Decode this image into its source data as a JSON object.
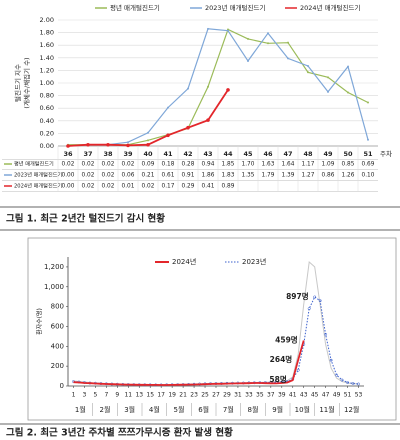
{
  "chart_data": [
    {
      "type": "line",
      "y_label": [
        "털진드기 지수",
        "(개체수/채집기 수)"
      ],
      "x_label": "주차",
      "categories": [
        "36",
        "37",
        "38",
        "39",
        "40",
        "41",
        "42",
        "43",
        "44",
        "45",
        "46",
        "47",
        "48",
        "49",
        "50",
        "51"
      ],
      "ylim": [
        0,
        2
      ],
      "yticks": [
        {
          "value": 0,
          "label": "0.00"
        },
        {
          "value": 0.2,
          "label": "0.20"
        },
        {
          "value": 0.4,
          "label": "0.40"
        },
        {
          "value": 0.6,
          "label": "0.60"
        },
        {
          "value": 0.8,
          "label": "0.80"
        },
        {
          "value": 1,
          "label": "1.00"
        },
        {
          "value": 1.2,
          "label": "1.20"
        },
        {
          "value": 1.4,
          "label": "1.40"
        },
        {
          "value": 1.6,
          "label": "1.60"
        },
        {
          "value": 1.8,
          "label": "1.80"
        },
        {
          "value": 2,
          "label": "2.00"
        }
      ],
      "grid": true,
      "legend": "top",
      "series": [
        {
          "name": "평년 매개털진드기",
          "color": "#9bbb59",
          "values": [
            0.02,
            0.02,
            0.02,
            0.02,
            0.09,
            0.18,
            0.28,
            0.94,
            1.85,
            1.7,
            1.63,
            1.64,
            1.17,
            1.09,
            0.85,
            0.69
          ],
          "value_labels": [
            "0.02",
            "0.02",
            "0.02",
            "0.02",
            "0.09",
            "0.18",
            "0.28",
            "0.94",
            "1.85",
            "1.70",
            "1.63",
            "1.64",
            "1.17",
            "1.09",
            "0.85",
            "0.69"
          ]
        },
        {
          "name": "2023년 매개털진드기",
          "color": "#7fa7d8",
          "values": [
            0,
            0.02,
            0.02,
            0.06,
            0.21,
            0.61,
            0.91,
            1.86,
            1.83,
            1.35,
            1.79,
            1.39,
            1.27,
            0.86,
            1.26,
            0.1
          ],
          "value_labels": [
            "0.00",
            "0.02",
            "0.02",
            "0.06",
            "0.21",
            "0.61",
            "0.91",
            "1.86",
            "1.83",
            "1.35",
            "1.79",
            "1.39",
            "1.27",
            "0.86",
            "1.26",
            "0.10"
          ]
        },
        {
          "name": "2024년 매개털진드기",
          "color": "#e3262b",
          "values": [
            0,
            0.02,
            0.02,
            0.01,
            0.02,
            0.17,
            0.29,
            0.41,
            0.89,
            null,
            null,
            null,
            null,
            null,
            null,
            null
          ],
          "value_labels": [
            "0.00",
            "0.02",
            "0.02",
            "0.01",
            "0.02",
            "0.17",
            "0.29",
            "0.41",
            "0.89",
            null,
            null,
            null,
            null,
            null,
            null,
            null
          ]
        }
      ],
      "caption": "그림 1. 최근 2년간 털진드기 감시 현황"
    },
    {
      "type": "line",
      "y_label": "환자수(명)",
      "x": [
        1,
        2,
        3,
        4,
        5,
        6,
        7,
        8,
        9,
        10,
        11,
        12,
        13,
        14,
        15,
        16,
        17,
        18,
        19,
        20,
        21,
        22,
        23,
        24,
        25,
        26,
        27,
        28,
        29,
        30,
        31,
        32,
        33,
        34,
        35,
        36,
        37,
        38,
        39,
        40,
        41,
        42,
        43,
        44,
        45,
        46,
        47,
        48,
        49,
        50,
        51,
        52,
        53
      ],
      "xlim": [
        0,
        54
      ],
      "xticks": [
        1,
        3,
        5,
        7,
        9,
        11,
        13,
        15,
        17,
        19,
        21,
        23,
        25,
        27,
        29,
        31,
        33,
        35,
        37,
        39,
        41,
        43,
        45,
        47,
        49,
        51,
        53
      ],
      "months": [
        "1월",
        "2월",
        "3월",
        "4월",
        "5월",
        "6월",
        "7월",
        "8월",
        "9월",
        "10월",
        "11월",
        "12월"
      ],
      "ylim": [
        0,
        1300
      ],
      "yticks": [
        0,
        200,
        400,
        600,
        800,
        {
          "value": 1000,
          "label": "1,000"
        },
        {
          "value": 1200,
          "label": "1,200"
        }
      ],
      "series": [
        {
          "color": "#c8c8c8",
          "values": [
            50,
            45,
            40,
            35,
            30,
            28,
            25,
            22,
            20,
            18,
            16,
            15,
            14,
            13,
            13,
            12,
            12,
            13,
            14,
            15,
            16,
            18,
            20,
            22,
            24,
            26,
            27,
            28,
            30,
            31,
            32,
            33,
            34,
            35,
            36,
            38,
            40,
            42,
            45,
            55,
            90,
            320,
            820,
            1250,
            1200,
            820,
            420,
            180,
            80,
            45,
            30,
            25,
            20
          ]
        },
        {
          "name": "2023년",
          "color": "#3a5fcd",
          "values": [
            45,
            40,
            35,
            30,
            28,
            25,
            22,
            20,
            18,
            16,
            15,
            14,
            13,
            12,
            12,
            11,
            11,
            12,
            13,
            14,
            15,
            16,
            18,
            20,
            22,
            24,
            25,
            26,
            27,
            28,
            30,
            30,
            32,
            33,
            34,
            35,
            36,
            38,
            40,
            45,
            70,
            160,
            420,
            780,
            897,
            860,
            520,
            260,
            110,
            60,
            35,
            25,
            20
          ]
        },
        {
          "name": "2024년",
          "color": "#e3262b",
          "values": [
            38,
            35,
            30,
            28,
            25,
            22,
            20,
            18,
            17,
            15,
            14,
            13,
            12,
            12,
            11,
            11,
            10,
            10,
            11,
            12,
            13,
            14,
            15,
            16,
            18,
            20,
            22,
            22,
            24,
            25,
            26,
            27,
            28,
            30,
            30,
            28,
            27,
            26,
            30,
            35,
            58,
            264,
            459,
            null,
            null,
            null,
            null,
            null,
            null,
            null,
            null,
            null,
            null
          ]
        }
      ],
      "annotations": [
        {
          "text": "897명",
          "x": 45,
          "y": 897,
          "color": "#3a5fcd"
        },
        {
          "text": "459명",
          "x": 43,
          "y": 459,
          "color": "#e3262b"
        },
        {
          "text": "264명",
          "x": 42,
          "y": 264,
          "color": "#e3262b"
        },
        {
          "text": "58명",
          "x": 41,
          "y": 58,
          "color": "#e3262b"
        }
      ],
      "caption": "그림 2. 최근 3년간 주차별 쯔쯔가무시증 환자 발생 현황"
    }
  ]
}
